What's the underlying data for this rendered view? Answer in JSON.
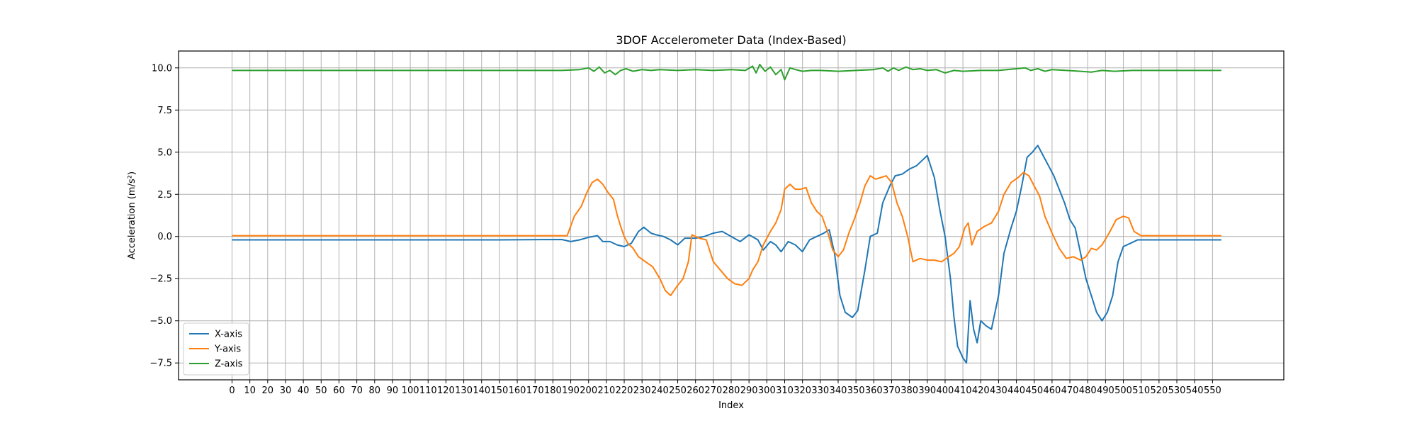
{
  "chart_data": {
    "type": "line",
    "title": "3DOF Accelerometer Data (Index-Based)",
    "xlabel": "Index",
    "ylabel": "Acceleration (m/s²)",
    "xlim": [
      -30,
      590
    ],
    "ylim": [
      -8.5,
      11.0
    ],
    "grid": true,
    "legend_position": "lower left",
    "x_ticks": [
      0,
      10,
      20,
      30,
      40,
      50,
      60,
      70,
      80,
      90,
      100,
      110,
      120,
      130,
      140,
      150,
      160,
      170,
      180,
      190,
      200,
      210,
      220,
      230,
      240,
      250,
      260,
      270,
      280,
      290,
      300,
      310,
      320,
      330,
      340,
      350,
      360,
      370,
      380,
      390,
      400,
      410,
      420,
      430,
      440,
      450,
      460,
      470,
      480,
      490,
      500,
      510,
      520,
      530,
      540,
      550
    ],
    "y_ticks": [
      -7.5,
      -5.0,
      -2.5,
      0.0,
      2.5,
      5.0,
      7.5,
      10.0
    ],
    "y_tick_labels": [
      "−7.5",
      "−5.0",
      "−2.5",
      "0.0",
      "2.5",
      "5.0",
      "7.5",
      "10.0"
    ],
    "series": [
      {
        "name": "X-axis",
        "color": "#1f77b4",
        "points": [
          [
            0,
            -0.2
          ],
          [
            50,
            -0.2
          ],
          [
            100,
            -0.2
          ],
          [
            150,
            -0.2
          ],
          [
            185,
            -0.18
          ],
          [
            190,
            -0.3
          ],
          [
            195,
            -0.2
          ],
          [
            200,
            -0.05
          ],
          [
            205,
            0.05
          ],
          [
            208,
            -0.3
          ],
          [
            212,
            -0.3
          ],
          [
            216,
            -0.5
          ],
          [
            220,
            -0.6
          ],
          [
            224,
            -0.4
          ],
          [
            228,
            0.3
          ],
          [
            231,
            0.55
          ],
          [
            235,
            0.2
          ],
          [
            238,
            0.1
          ],
          [
            242,
            0.0
          ],
          [
            246,
            -0.2
          ],
          [
            250,
            -0.5
          ],
          [
            254,
            -0.1
          ],
          [
            260,
            -0.1
          ],
          [
            265,
            0.0
          ],
          [
            270,
            0.2
          ],
          [
            275,
            0.3
          ],
          [
            280,
            0.0
          ],
          [
            285,
            -0.3
          ],
          [
            290,
            0.1
          ],
          [
            295,
            -0.2
          ],
          [
            298,
            -0.8
          ],
          [
            302,
            -0.3
          ],
          [
            305,
            -0.5
          ],
          [
            308,
            -0.9
          ],
          [
            312,
            -0.3
          ],
          [
            316,
            -0.5
          ],
          [
            320,
            -0.9
          ],
          [
            324,
            -0.2
          ],
          [
            328,
            0.0
          ],
          [
            332,
            0.2
          ],
          [
            335,
            0.4
          ],
          [
            338,
            -1.0
          ],
          [
            341,
            -3.5
          ],
          [
            344,
            -4.5
          ],
          [
            348,
            -4.8
          ],
          [
            351,
            -4.4
          ],
          [
            355,
            -2.0
          ],
          [
            358,
            0.0
          ],
          [
            362,
            0.2
          ],
          [
            365,
            2.0
          ],
          [
            369,
            3.0
          ],
          [
            372,
            3.6
          ],
          [
            376,
            3.7
          ],
          [
            380,
            4.0
          ],
          [
            384,
            4.2
          ],
          [
            387,
            4.5
          ],
          [
            390,
            4.8
          ],
          [
            394,
            3.5
          ],
          [
            397,
            1.6
          ],
          [
            400,
            0.0
          ],
          [
            403,
            -2.5
          ],
          [
            405,
            -4.8
          ],
          [
            407,
            -6.5
          ],
          [
            410,
            -7.2
          ],
          [
            412,
            -7.5
          ],
          [
            414,
            -3.8
          ],
          [
            416,
            -5.5
          ],
          [
            418,
            -6.3
          ],
          [
            420,
            -5.0
          ],
          [
            423,
            -5.3
          ],
          [
            426,
            -5.5
          ],
          [
            430,
            -3.5
          ],
          [
            433,
            -1.0
          ],
          [
            437,
            0.5
          ],
          [
            440,
            1.5
          ],
          [
            443,
            3.0
          ],
          [
            446,
            4.7
          ],
          [
            449,
            5.0
          ],
          [
            452,
            5.4
          ],
          [
            455,
            4.8
          ],
          [
            458,
            4.2
          ],
          [
            461,
            3.6
          ],
          [
            464,
            2.8
          ],
          [
            467,
            2.0
          ],
          [
            470,
            1.0
          ],
          [
            473,
            0.5
          ],
          [
            476,
            -1.0
          ],
          [
            479,
            -2.5
          ],
          [
            482,
            -3.5
          ],
          [
            485,
            -4.5
          ],
          [
            488,
            -5.0
          ],
          [
            491,
            -4.5
          ],
          [
            494,
            -3.5
          ],
          [
            497,
            -1.5
          ],
          [
            500,
            -0.6
          ],
          [
            504,
            -0.4
          ],
          [
            508,
            -0.2
          ],
          [
            520,
            -0.2
          ],
          [
            540,
            -0.2
          ],
          [
            555,
            -0.2
          ]
        ]
      },
      {
        "name": "Y-axis",
        "color": "#ff7f0e",
        "points": [
          [
            0,
            0.05
          ],
          [
            50,
            0.05
          ],
          [
            100,
            0.05
          ],
          [
            150,
            0.05
          ],
          [
            188,
            0.05
          ],
          [
            192,
            1.2
          ],
          [
            196,
            1.8
          ],
          [
            199,
            2.6
          ],
          [
            202,
            3.2
          ],
          [
            205,
            3.4
          ],
          [
            208,
            3.1
          ],
          [
            211,
            2.6
          ],
          [
            214,
            2.2
          ],
          [
            216,
            1.3
          ],
          [
            218,
            0.6
          ],
          [
            220,
            0.0
          ],
          [
            222,
            -0.4
          ],
          [
            225,
            -0.7
          ],
          [
            228,
            -1.2
          ],
          [
            232,
            -1.5
          ],
          [
            236,
            -1.8
          ],
          [
            240,
            -2.5
          ],
          [
            243,
            -3.2
          ],
          [
            246,
            -3.5
          ],
          [
            250,
            -2.9
          ],
          [
            253,
            -2.5
          ],
          [
            256,
            -1.5
          ],
          [
            258,
            0.1
          ],
          [
            262,
            -0.1
          ],
          [
            266,
            -0.2
          ],
          [
            270,
            -1.5
          ],
          [
            274,
            -2.0
          ],
          [
            278,
            -2.5
          ],
          [
            282,
            -2.8
          ],
          [
            286,
            -2.9
          ],
          [
            290,
            -2.5
          ],
          [
            292,
            -2.0
          ],
          [
            295,
            -1.5
          ],
          [
            298,
            -0.5
          ],
          [
            302,
            0.3
          ],
          [
            305,
            0.8
          ],
          [
            308,
            1.6
          ],
          [
            310,
            2.8
          ],
          [
            313,
            3.1
          ],
          [
            316,
            2.8
          ],
          [
            319,
            2.8
          ],
          [
            322,
            2.9
          ],
          [
            325,
            2.0
          ],
          [
            328,
            1.5
          ],
          [
            331,
            1.2
          ],
          [
            334,
            0.3
          ],
          [
            337,
            -0.8
          ],
          [
            340,
            -1.2
          ],
          [
            343,
            -0.8
          ],
          [
            346,
            0.2
          ],
          [
            349,
            1.0
          ],
          [
            352,
            1.9
          ],
          [
            355,
            3.0
          ],
          [
            358,
            3.6
          ],
          [
            361,
            3.4
          ],
          [
            364,
            3.5
          ],
          [
            367,
            3.6
          ],
          [
            370,
            3.2
          ],
          [
            373,
            2.0
          ],
          [
            376,
            1.2
          ],
          [
            379,
            0.0
          ],
          [
            382,
            -1.5
          ],
          [
            386,
            -1.3
          ],
          [
            390,
            -1.4
          ],
          [
            394,
            -1.4
          ],
          [
            398,
            -1.5
          ],
          [
            402,
            -1.2
          ],
          [
            405,
            -1.0
          ],
          [
            408,
            -0.6
          ],
          [
            411,
            0.5
          ],
          [
            413,
            0.8
          ],
          [
            415,
            -0.5
          ],
          [
            418,
            0.3
          ],
          [
            422,
            0.6
          ],
          [
            426,
            0.8
          ],
          [
            430,
            1.5
          ],
          [
            433,
            2.5
          ],
          [
            437,
            3.2
          ],
          [
            441,
            3.5
          ],
          [
            444,
            3.8
          ],
          [
            447,
            3.6
          ],
          [
            450,
            3.0
          ],
          [
            453,
            2.4
          ],
          [
            456,
            1.2
          ],
          [
            460,
            0.2
          ],
          [
            464,
            -0.7
          ],
          [
            468,
            -1.3
          ],
          [
            472,
            -1.2
          ],
          [
            476,
            -1.4
          ],
          [
            479,
            -1.2
          ],
          [
            482,
            -0.7
          ],
          [
            485,
            -0.8
          ],
          [
            488,
            -0.5
          ],
          [
            492,
            0.2
          ],
          [
            496,
            1.0
          ],
          [
            500,
            1.2
          ],
          [
            503,
            1.1
          ],
          [
            506,
            0.3
          ],
          [
            510,
            0.05
          ],
          [
            520,
            0.05
          ],
          [
            540,
            0.05
          ],
          [
            555,
            0.05
          ]
        ]
      },
      {
        "name": "Z-axis",
        "color": "#2ca02c",
        "points": [
          [
            0,
            9.85
          ],
          [
            50,
            9.85
          ],
          [
            100,
            9.85
          ],
          [
            150,
            9.85
          ],
          [
            185,
            9.85
          ],
          [
            195,
            9.9
          ],
          [
            200,
            10.0
          ],
          [
            203,
            9.8
          ],
          [
            206,
            10.05
          ],
          [
            209,
            9.7
          ],
          [
            212,
            9.85
          ],
          [
            215,
            9.6
          ],
          [
            218,
            9.85
          ],
          [
            221,
            9.95
          ],
          [
            225,
            9.8
          ],
          [
            230,
            9.9
          ],
          [
            235,
            9.85
          ],
          [
            240,
            9.9
          ],
          [
            250,
            9.85
          ],
          [
            260,
            9.9
          ],
          [
            270,
            9.85
          ],
          [
            280,
            9.9
          ],
          [
            288,
            9.85
          ],
          [
            292,
            10.1
          ],
          [
            294,
            9.7
          ],
          [
            296,
            10.2
          ],
          [
            299,
            9.8
          ],
          [
            302,
            10.05
          ],
          [
            305,
            9.6
          ],
          [
            308,
            9.9
          ],
          [
            310,
            9.3
          ],
          [
            313,
            10.0
          ],
          [
            316,
            9.9
          ],
          [
            320,
            9.8
          ],
          [
            325,
            9.85
          ],
          [
            330,
            9.85
          ],
          [
            340,
            9.8
          ],
          [
            350,
            9.85
          ],
          [
            360,
            9.9
          ],
          [
            365,
            10.0
          ],
          [
            368,
            9.8
          ],
          [
            371,
            10.0
          ],
          [
            374,
            9.85
          ],
          [
            378,
            10.05
          ],
          [
            382,
            9.9
          ],
          [
            386,
            9.95
          ],
          [
            390,
            9.85
          ],
          [
            395,
            9.9
          ],
          [
            400,
            9.7
          ],
          [
            405,
            9.85
          ],
          [
            410,
            9.8
          ],
          [
            420,
            9.85
          ],
          [
            430,
            9.85
          ],
          [
            440,
            9.95
          ],
          [
            445,
            10.0
          ],
          [
            448,
            9.85
          ],
          [
            452,
            9.95
          ],
          [
            456,
            9.8
          ],
          [
            460,
            9.9
          ],
          [
            468,
            9.85
          ],
          [
            476,
            9.8
          ],
          [
            482,
            9.75
          ],
          [
            488,
            9.85
          ],
          [
            495,
            9.8
          ],
          [
            505,
            9.85
          ],
          [
            520,
            9.85
          ],
          [
            540,
            9.85
          ],
          [
            555,
            9.85
          ]
        ]
      }
    ]
  }
}
